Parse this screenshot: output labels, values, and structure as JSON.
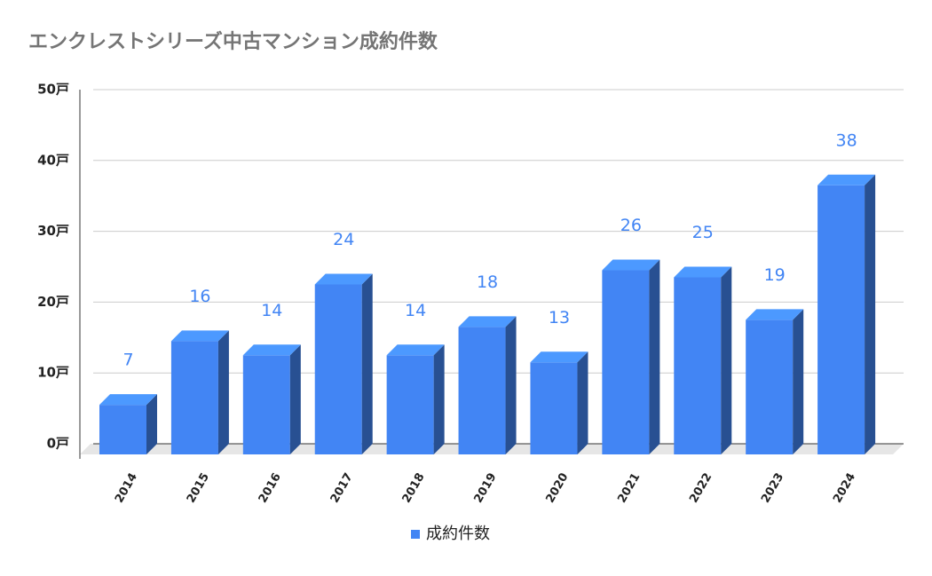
{
  "chart_data": {
    "type": "bar3d",
    "title": "エンクレストシリーズ中古マンション成約件数",
    "categories": [
      "2014",
      "2015",
      "2016",
      "2017",
      "2018",
      "2019",
      "2020",
      "2021",
      "2022",
      "2023",
      "2024"
    ],
    "series": [
      {
        "name": "成約件数",
        "color": "#4285f4",
        "values": [
          7,
          16,
          14,
          24,
          14,
          18,
          13,
          26,
          25,
          19,
          38
        ]
      }
    ],
    "ylim": [
      0,
      50
    ],
    "yticks": [
      {
        "value": 0,
        "label": "0戸"
      },
      {
        "value": 10,
        "label": "10戸"
      },
      {
        "value": 20,
        "label": "20戸"
      },
      {
        "value": 30,
        "label": "30戸"
      },
      {
        "value": 40,
        "label": "40戸"
      },
      {
        "value": 50,
        "label": "50戸"
      }
    ],
    "grid": true,
    "legend": "bottom"
  }
}
